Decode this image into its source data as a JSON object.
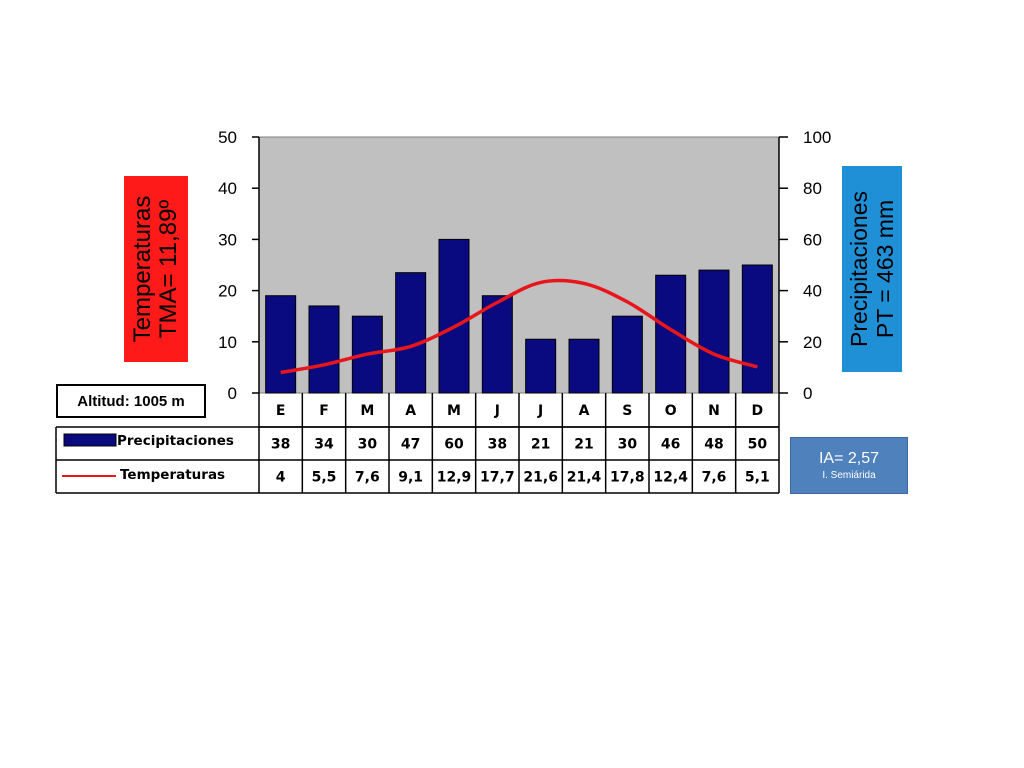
{
  "chart_data": {
    "type": "bar",
    "categories": [
      "E",
      "F",
      "M",
      "A",
      "M",
      "J",
      "J",
      "A",
      "S",
      "O",
      "N",
      "D"
    ],
    "series": [
      {
        "name": "Precipitaciones",
        "type": "bar",
        "axis": "right",
        "color": "#0a0a80",
        "values": [
          38,
          34,
          30,
          47,
          60,
          38,
          21,
          21,
          30,
          46,
          48,
          50
        ],
        "labels": [
          "38",
          "34",
          "30",
          "47",
          "60",
          "38",
          "21",
          "21",
          "30",
          "46",
          "48",
          "50"
        ]
      },
      {
        "name": "Temperaturas",
        "type": "line",
        "axis": "left",
        "color": "#e8151b",
        "values": [
          4,
          5.5,
          7.6,
          9.1,
          12.9,
          17.7,
          21.6,
          21.4,
          17.8,
          12.4,
          7.6,
          5.1
        ],
        "labels": [
          "4",
          "5,5",
          "7,6",
          "9,1",
          "12,9",
          "17,7",
          "21,6",
          "21,4",
          "17,8",
          "12,4",
          "7,6",
          "5,1"
        ]
      }
    ],
    "y_left": {
      "range": [
        0,
        50
      ],
      "ticks": [
        "0",
        "10",
        "20",
        "30",
        "40",
        "50"
      ]
    },
    "y_right": {
      "range": [
        0,
        100
      ],
      "ticks": [
        "0",
        "20",
        "40",
        "60",
        "80",
        "100"
      ]
    },
    "plot_background": "#c0c0c0",
    "grid": false,
    "legend": "table-bottom"
  },
  "annotations": {
    "temp_line1": "Temperaturas",
    "temp_line2": "TMA= 11,89º",
    "prec_line1": "Precipitaciones",
    "prec_line2": "PT = 463 mm",
    "altitude": "Altitud: 1005 m",
    "ia": "IA= 2,57",
    "ia_class": "I. Semiárida"
  }
}
